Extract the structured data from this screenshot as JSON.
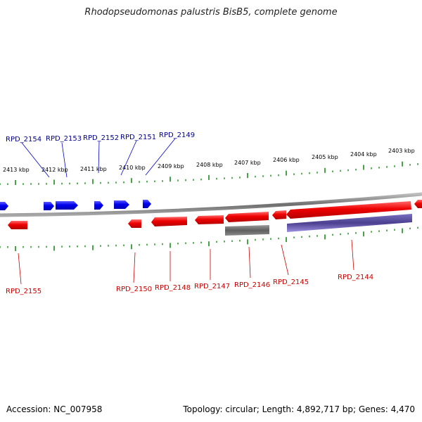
{
  "title": "Rhodopseudomonas palustris BisB5, complete genome",
  "footer": {
    "accession": "Accession: NC_007958",
    "summary": "Topology: circular; Length: 4,892,717 bp; Genes: 4,470"
  },
  "colors": {
    "forward_gene": "#0000ee",
    "forward_label": "#00008b",
    "reverse_gene": "#ee0000",
    "reverse_label": "#cc0000",
    "rna_block": "#5f5f5f",
    "protein_block": "#5b4e9a",
    "backbone": "#7a7a7a",
    "ticks": "#1a8a1a"
  },
  "scale_labels": [
    "2413 kbp",
    "2412 kbp",
    "2411 kbp",
    "2410 kbp",
    "2409 kbp",
    "2408 kbp",
    "2407 kbp",
    "2406 kbp",
    "2405 kbp",
    "2404 kbp",
    "2403 kbp"
  ],
  "forward_labels": [
    "RPD_2154",
    "RPD_2153",
    "RPD_2152",
    "RPD_2151",
    "RPD_2149"
  ],
  "reverse_labels": [
    "RPD_2155",
    "RPD_2150",
    "RPD_2148",
    "RPD_2147",
    "RPD_2146",
    "RPD_2145",
    "RPD_2144"
  ]
}
